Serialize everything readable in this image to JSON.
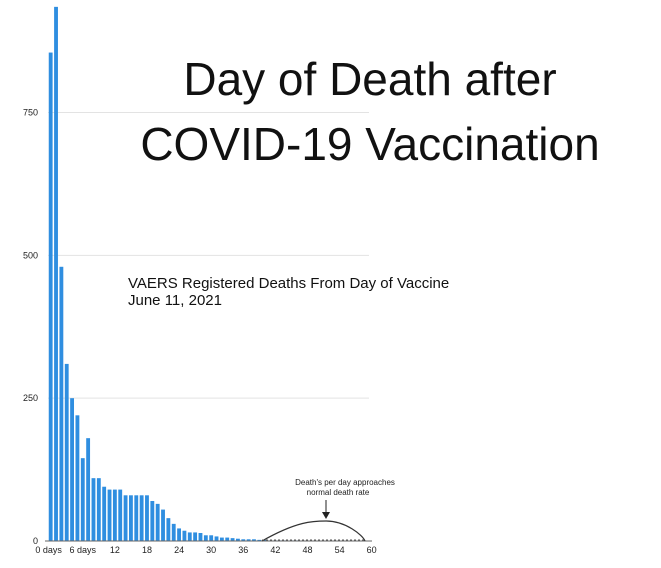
{
  "chart_data": {
    "type": "bar",
    "title_lines": [
      "Day of Death after",
      "COVID-19 Vaccination"
    ],
    "subtitle_lines": [
      "VAERS Registered Deaths From Day of Vaccine",
      "June 11, 2021"
    ],
    "colors": {
      "bar": "#2f8ee0",
      "grid": "#e3e3e3",
      "text": "#111111"
    },
    "ylim": [
      0,
      940
    ],
    "yticks": [
      0,
      250,
      500,
      750
    ],
    "xlim": [
      0,
      60
    ],
    "xticks": [
      {
        "value": 0,
        "label": "0 days"
      },
      {
        "value": 6,
        "label": "6 days"
      },
      {
        "value": 12,
        "label": "12"
      },
      {
        "value": 18,
        "label": "18"
      },
      {
        "value": 24,
        "label": "24"
      },
      {
        "value": 30,
        "label": "30"
      },
      {
        "value": 36,
        "label": "36"
      },
      {
        "value": 42,
        "label": "42"
      },
      {
        "value": 48,
        "label": "48"
      },
      {
        "value": 54,
        "label": "54"
      },
      {
        "value": 60,
        "label": "60"
      }
    ],
    "grid": true,
    "days": [
      0,
      1,
      2,
      3,
      4,
      5,
      6,
      7,
      8,
      9,
      10,
      11,
      12,
      13,
      14,
      15,
      16,
      17,
      18,
      19,
      20,
      21,
      22,
      23,
      24,
      25,
      26,
      27,
      28,
      29,
      30,
      31,
      32,
      33,
      34,
      35,
      36,
      37,
      38,
      39,
      40,
      41,
      42,
      43,
      44,
      45,
      46
    ],
    "values": [
      855,
      935,
      480,
      310,
      250,
      220,
      145,
      180,
      110,
      110,
      95,
      90,
      90,
      90,
      80,
      80,
      80,
      80,
      80,
      70,
      65,
      55,
      40,
      30,
      22,
      18,
      15,
      15,
      14,
      10,
      10,
      8,
      6,
      6,
      5,
      4,
      3,
      3,
      3,
      2,
      2,
      1,
      1,
      1,
      1,
      1,
      1
    ],
    "annotation": {
      "text_lines": [
        "Death's per day approaches",
        "normal death rate"
      ],
      "curve_start_x": 40,
      "curve_peak_x": 52,
      "curve_end_x": 60,
      "curve_peak_y": 35
    }
  }
}
